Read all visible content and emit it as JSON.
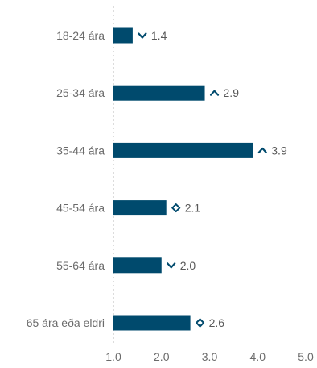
{
  "chart_data": {
    "type": "bar",
    "orientation": "horizontal",
    "categories": [
      "18-24 ára",
      "25-34 ára",
      "35-44 ára",
      "45-54 ára",
      "55-64 ára",
      "65 ára eða eldri"
    ],
    "values": [
      1.4,
      2.9,
      3.9,
      2.1,
      2.0,
      2.6
    ],
    "value_labels": [
      "1.4",
      "2.9",
      "3.9",
      "2.1",
      "2.0",
      "2.6"
    ],
    "trend_icons": [
      "chevron-down-icon",
      "chevron-up-icon",
      "chevron-up-icon",
      "diamond-icon",
      "chevron-down-icon",
      "diamond-icon"
    ],
    "x_ticks": [
      1.0,
      2.0,
      3.0,
      4.0,
      5.0
    ],
    "x_tick_labels": [
      "1.0",
      "2.0",
      "3.0",
      "4.0",
      "5.0"
    ],
    "xlim": [
      1.0,
      5.0
    ],
    "title": "",
    "xlabel": "",
    "ylabel": "",
    "baseline_grid": "dotted",
    "bar_color": "#004a6d",
    "label_color": "#6b6b6b",
    "value_color": "#595959",
    "icon_color": "#004a6d"
  }
}
